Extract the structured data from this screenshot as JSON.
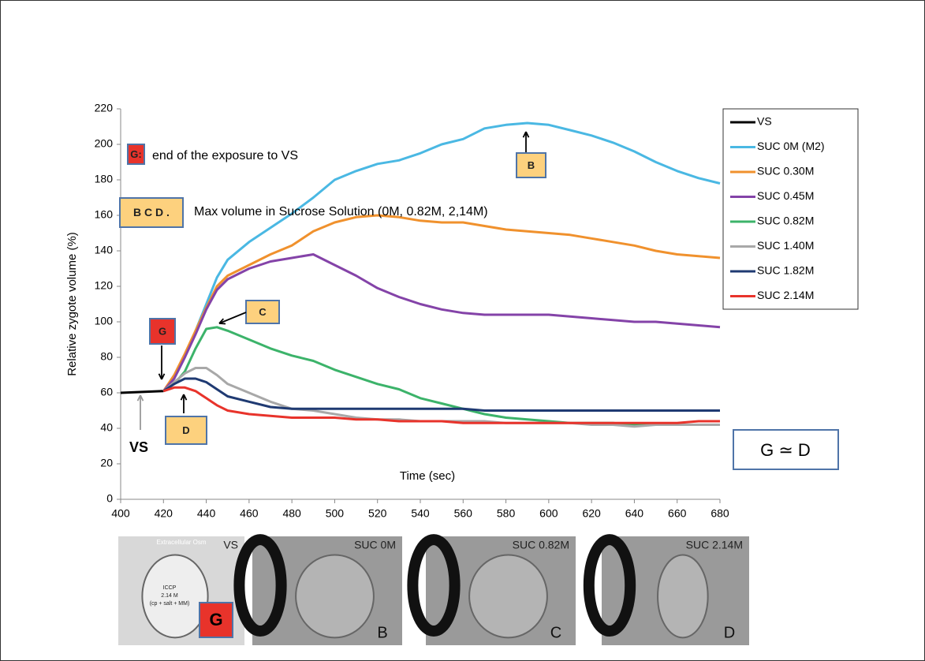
{
  "chart_data": {
    "type": "line",
    "x": [
      400,
      410,
      420,
      425,
      430,
      435,
      440,
      445,
      450,
      460,
      470,
      480,
      490,
      500,
      510,
      520,
      530,
      540,
      550,
      560,
      570,
      580,
      590,
      600,
      610,
      620,
      630,
      640,
      650,
      660,
      670,
      680
    ],
    "series": [
      {
        "name": "VS",
        "color": "#000000",
        "values": [
          60,
          60.5,
          61,
          null,
          null,
          null,
          null,
          null,
          null,
          null,
          null,
          null,
          null,
          null,
          null,
          null,
          null,
          null,
          null,
          null,
          null,
          null,
          null,
          null,
          null,
          null,
          null,
          null,
          null,
          null,
          null,
          null
        ]
      },
      {
        "name": "SUC 0M (M2)",
        "color": "#4ab8e3",
        "values": [
          null,
          null,
          61,
          68,
          80,
          95,
          110,
          125,
          135,
          145,
          153,
          161,
          170,
          180,
          185,
          189,
          191,
          195,
          200,
          203,
          209,
          211,
          212,
          211,
          208,
          205,
          201,
          196,
          190,
          185,
          181,
          178
        ]
      },
      {
        "name": "SUC 0.30M",
        "color": "#f0912d",
        "values": [
          null,
          null,
          61,
          70,
          82,
          95,
          108,
          120,
          126,
          132,
          138,
          143,
          151,
          156,
          159,
          160,
          159,
          157,
          156,
          156,
          154,
          152,
          151,
          150,
          149,
          147,
          145,
          143,
          140,
          138,
          137,
          136
        ]
      },
      {
        "name": "SUC 0.45M",
        "color": "#8443a8",
        "values": [
          null,
          null,
          61,
          68,
          80,
          93,
          107,
          118,
          124,
          130,
          134,
          136,
          138,
          132,
          126,
          119,
          114,
          110,
          107,
          105,
          104,
          104,
          104,
          104,
          103,
          102,
          101,
          100,
          100,
          99,
          98,
          97
        ]
      },
      {
        "name": "SUC 0.82M",
        "color": "#3cb36a",
        "values": [
          null,
          null,
          61,
          65,
          72,
          85,
          96,
          97,
          95,
          90,
          85,
          81,
          78,
          73,
          69,
          65,
          62,
          57,
          54,
          51,
          48,
          46,
          45,
          44,
          43,
          43,
          43,
          42,
          42,
          42,
          42,
          42
        ]
      },
      {
        "name": "SUC 1.40M",
        "color": "#a8a8a8",
        "values": [
          null,
          null,
          61,
          66,
          71,
          74,
          74,
          70,
          65,
          60,
          55,
          51,
          50,
          48,
          46,
          45,
          45,
          44,
          44,
          44,
          44,
          43,
          43,
          43,
          43,
          42,
          42,
          41,
          42,
          42,
          42,
          42
        ]
      },
      {
        "name": "SUC 1.82M",
        "color": "#1f3a72",
        "values": [
          null,
          null,
          61,
          65,
          68,
          68,
          66,
          62,
          58,
          55,
          52,
          51,
          51,
          51,
          51,
          51,
          51,
          51,
          51,
          51,
          50,
          50,
          50,
          50,
          50,
          50,
          50,
          50,
          50,
          50,
          50,
          50
        ]
      },
      {
        "name": "SUC 2.14M",
        "color": "#e8332b",
        "values": [
          null,
          null,
          61,
          63,
          63,
          61,
          57,
          53,
          50,
          48,
          47,
          46,
          46,
          46,
          45,
          45,
          44,
          44,
          44,
          43,
          43,
          43,
          43,
          43,
          43,
          43,
          43,
          43,
          43,
          43,
          44,
          44
        ]
      }
    ],
    "xlim": [
      400,
      680
    ],
    "ylim": [
      0,
      220
    ],
    "xticks": [
      400,
      420,
      440,
      460,
      480,
      500,
      520,
      540,
      560,
      580,
      600,
      620,
      640,
      660,
      680
    ],
    "yticks": [
      0,
      20,
      40,
      60,
      80,
      100,
      120,
      140,
      160,
      180,
      200,
      220
    ],
    "xlabel": "Time (sec)",
    "ylabel": "Relative zygote volume (%)"
  },
  "annotations": {
    "g_marker": "G",
    "g_key": "G:",
    "g_key_text": "end of the exposure to VS",
    "bcd_key": "B C D .",
    "bcd_key_text": "Max volume in Sucrose Solution (0M, 0.82M, 2,14M)",
    "b": "B",
    "c": "C",
    "d": "D",
    "vs": "VS",
    "equivalence": "G ≃ D"
  },
  "images": [
    {
      "caption": "VS",
      "letter": "G",
      "inset": [
        "Extracellular Osm",
        "ICCP",
        "2.14 M",
        "(cp + salt + MM)"
      ]
    },
    {
      "caption": "SUC 0M",
      "letter": "B"
    },
    {
      "caption": "SUC 0.82M",
      "letter": "C"
    },
    {
      "caption": "SUC 2.14M",
      "letter": "D"
    }
  ]
}
